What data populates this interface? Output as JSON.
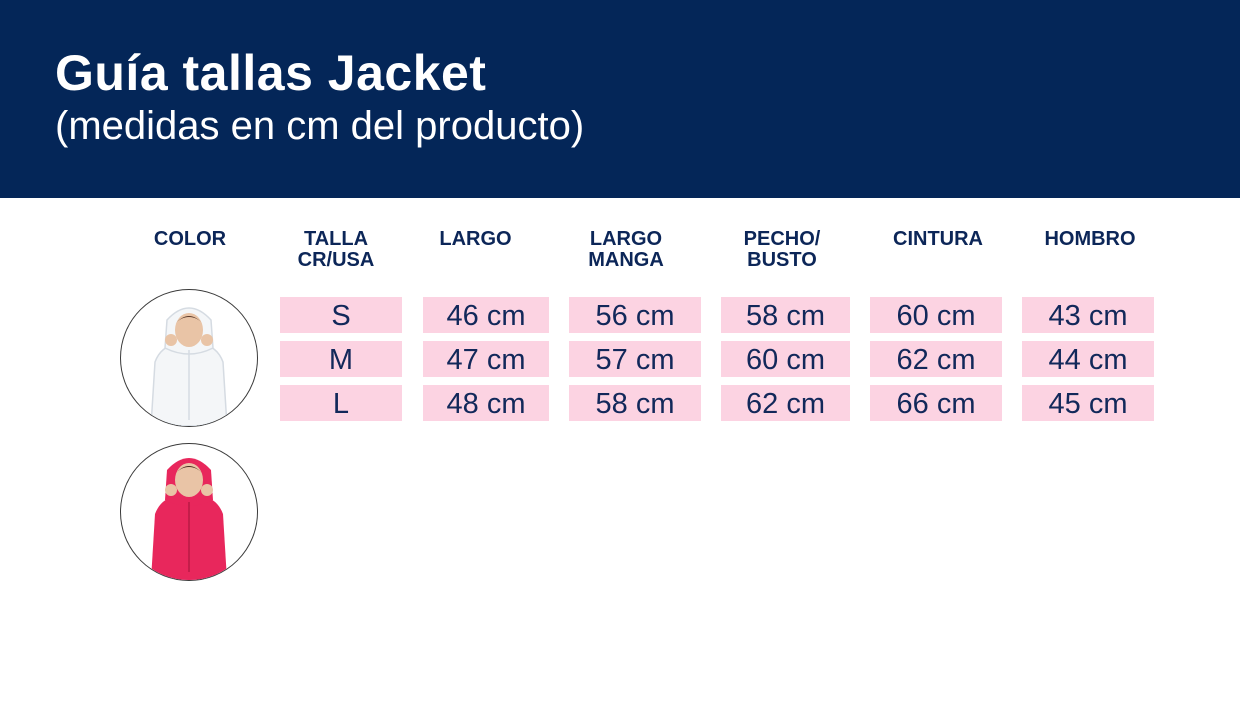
{
  "header": {
    "title": "Guía tallas Jacket",
    "subtitle": "(medidas en cm del producto)"
  },
  "columns": {
    "color": "COLOR",
    "talla": [
      "TALLA",
      "CR/USA"
    ],
    "largo": "LARGO",
    "largo_manga": [
      "LARGO",
      "MANGA"
    ],
    "pecho": [
      "PECHO/",
      "BUSTO"
    ],
    "cintura": "CINTURA",
    "hombro": "HOMBRO"
  },
  "rows": [
    {
      "talla": "S",
      "largo": "46 cm",
      "largo_manga": "56 cm",
      "pecho": "58 cm",
      "cintura": "60 cm",
      "hombro": "43 cm"
    },
    {
      "talla": "M",
      "largo": "47 cm",
      "largo_manga": "57 cm",
      "pecho": "60 cm",
      "cintura": "62 cm",
      "hombro": "44 cm"
    },
    {
      "talla": "L",
      "largo": "48 cm",
      "largo_manga": "58 cm",
      "pecho": "62 cm",
      "cintura": "66 cm",
      "hombro": "45 cm"
    }
  ],
  "color_swatches": [
    {
      "name": "white-jacket-photo",
      "jacket_color": "#f4f6f8"
    },
    {
      "name": "pink-jacket-photo",
      "jacket_color": "#e8275c"
    }
  ],
  "colors": {
    "header_bg": "#042658",
    "cell_bg": "#fcd3e2",
    "text": "#0c2658"
  }
}
